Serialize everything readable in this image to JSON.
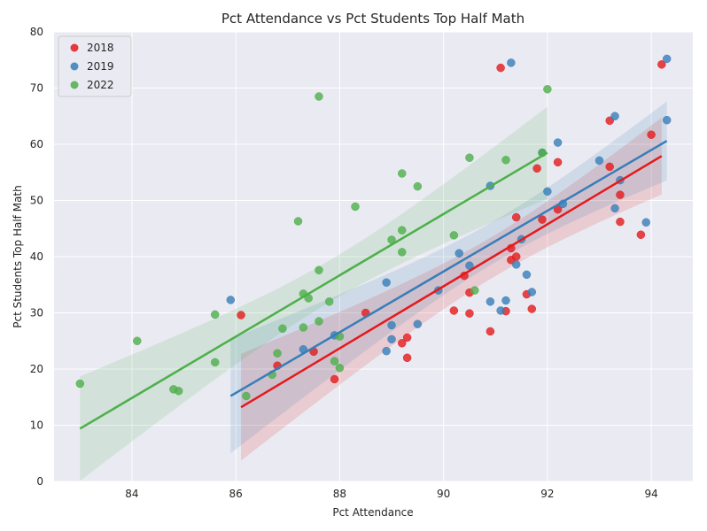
{
  "chart_data": {
    "type": "scatter",
    "title": "Pct Attendance vs Pct Students Top Half Math",
    "xlabel": "Pct Attendance",
    "ylabel": "Pct Students Top Half Math",
    "xlim": [
      82.5,
      94.8
    ],
    "ylim": [
      0,
      80
    ],
    "xticks": [
      84,
      86,
      88,
      90,
      92,
      94
    ],
    "yticks": [
      0,
      10,
      20,
      30,
      40,
      50,
      60,
      70,
      80
    ],
    "grid": true,
    "legend_position": "top-left",
    "series": [
      {
        "name": "2018",
        "color": "#e41a1c",
        "points": [
          [
            86.1,
            29.6
          ],
          [
            86.8,
            20.6
          ],
          [
            87.5,
            23.1
          ],
          [
            87.9,
            18.2
          ],
          [
            88.5,
            30.0
          ],
          [
            89.2,
            24.6
          ],
          [
            89.3,
            22.0
          ],
          [
            89.3,
            25.6
          ],
          [
            90.2,
            30.4
          ],
          [
            90.4,
            36.6
          ],
          [
            90.5,
            33.6
          ],
          [
            90.5,
            29.9
          ],
          [
            90.9,
            26.7
          ],
          [
            91.1,
            73.6
          ],
          [
            91.2,
            30.3
          ],
          [
            91.3,
            39.4
          ],
          [
            91.3,
            41.5
          ],
          [
            91.4,
            47.0
          ],
          [
            91.4,
            40.0
          ],
          [
            91.6,
            33.3
          ],
          [
            91.7,
            30.7
          ],
          [
            91.8,
            55.7
          ],
          [
            91.9,
            46.6
          ],
          [
            92.2,
            48.4
          ],
          [
            92.2,
            56.8
          ],
          [
            93.2,
            56.0
          ],
          [
            93.2,
            64.2
          ],
          [
            93.4,
            51.0
          ],
          [
            93.4,
            46.2
          ],
          [
            93.8,
            43.9
          ],
          [
            94.0,
            61.7
          ],
          [
            94.2,
            74.2
          ]
        ],
        "fit": {
          "x": [
            86.1,
            94.2
          ],
          "y": [
            13.2,
            57.9
          ]
        }
      },
      {
        "name": "2019",
        "color": "#377eb8",
        "points": [
          [
            85.9,
            32.3
          ],
          [
            87.3,
            23.5
          ],
          [
            87.9,
            26.0
          ],
          [
            88.9,
            35.4
          ],
          [
            88.9,
            23.2
          ],
          [
            89.0,
            25.3
          ],
          [
            89.0,
            27.8
          ],
          [
            89.5,
            28.0
          ],
          [
            89.9,
            34.0
          ],
          [
            90.3,
            40.6
          ],
          [
            90.5,
            38.4
          ],
          [
            90.9,
            32.0
          ],
          [
            90.9,
            52.6
          ],
          [
            91.1,
            30.4
          ],
          [
            91.2,
            32.2
          ],
          [
            91.3,
            74.5
          ],
          [
            91.4,
            38.6
          ],
          [
            91.5,
            43.1
          ],
          [
            91.6,
            36.8
          ],
          [
            91.7,
            33.7
          ],
          [
            91.9,
            58.5
          ],
          [
            92.0,
            51.6
          ],
          [
            92.2,
            60.3
          ],
          [
            92.3,
            49.4
          ],
          [
            93.0,
            57.1
          ],
          [
            93.3,
            65.0
          ],
          [
            93.3,
            48.6
          ],
          [
            93.4,
            53.6
          ],
          [
            93.9,
            46.1
          ],
          [
            94.3,
            75.2
          ],
          [
            94.3,
            64.3
          ]
        ],
        "fit": {
          "x": [
            85.9,
            94.3
          ],
          "y": [
            15.2,
            60.6
          ]
        }
      },
      {
        "name": "2022",
        "color": "#4daf4a",
        "points": [
          [
            83.0,
            17.4
          ],
          [
            84.1,
            25.0
          ],
          [
            84.8,
            16.4
          ],
          [
            84.9,
            16.1
          ],
          [
            85.6,
            21.2
          ],
          [
            85.6,
            29.7
          ],
          [
            86.2,
            15.2
          ],
          [
            86.7,
            19.0
          ],
          [
            86.8,
            22.8
          ],
          [
            86.9,
            27.2
          ],
          [
            87.2,
            46.3
          ],
          [
            87.3,
            27.4
          ],
          [
            87.3,
            33.4
          ],
          [
            87.4,
            32.6
          ],
          [
            87.6,
            68.5
          ],
          [
            87.6,
            28.5
          ],
          [
            87.6,
            37.6
          ],
          [
            87.8,
            32.0
          ],
          [
            87.9,
            21.4
          ],
          [
            88.0,
            20.2
          ],
          [
            88.0,
            25.8
          ],
          [
            88.3,
            48.9
          ],
          [
            89.0,
            43.0
          ],
          [
            89.2,
            40.8
          ],
          [
            89.2,
            44.7
          ],
          [
            89.2,
            54.8
          ],
          [
            89.5,
            52.5
          ],
          [
            90.2,
            43.8
          ],
          [
            90.5,
            57.6
          ],
          [
            90.6,
            34.0
          ],
          [
            91.2,
            57.2
          ],
          [
            91.9,
            58.5
          ],
          [
            92.0,
            69.8
          ]
        ],
        "fit": {
          "x": [
            83.0,
            92.0
          ],
          "y": [
            9.4,
            58.5
          ]
        }
      }
    ]
  }
}
